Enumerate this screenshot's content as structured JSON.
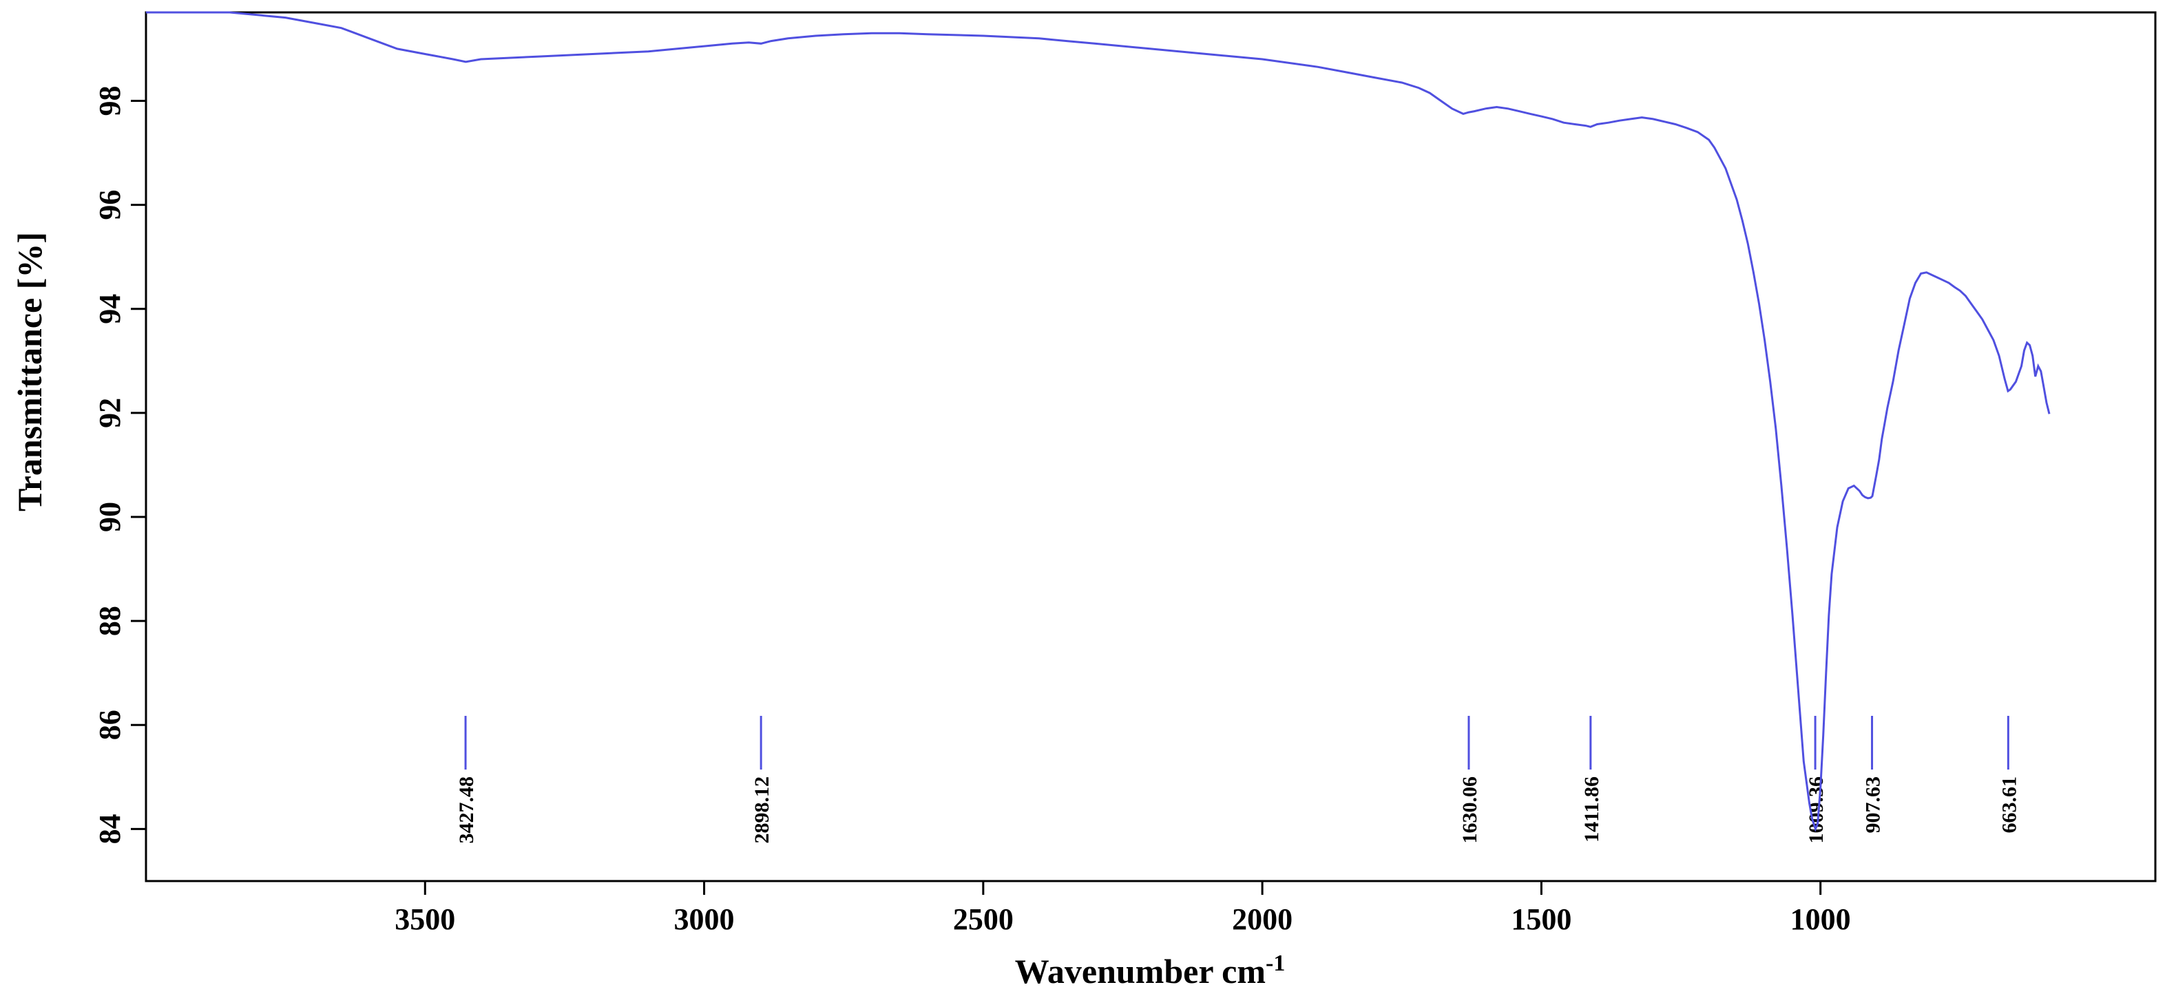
{
  "chart_data": {
    "type": "line",
    "xlabel": "Wavenumber cm",
    "xlabel_sup": "-1",
    "ylabel": "Transmittance [%]",
    "xlim": [
      4000,
      400
    ],
    "ylim": [
      83,
      99.7
    ],
    "x_ticks": [
      3500,
      3000,
      2500,
      2000,
      1500,
      1000
    ],
    "x_tick_labels": [
      "3500",
      "3000",
      "2500",
      "2000",
      "1500",
      "1000"
    ],
    "y_ticks": [
      84,
      86,
      88,
      90,
      92,
      94,
      96,
      98
    ],
    "y_tick_labels": [
      "84",
      "86",
      "88",
      "90",
      "92",
      "94",
      "96",
      "98"
    ],
    "grid": false,
    "series": [
      {
        "color": "#5050e0",
        "x": [
          4000,
          3850,
          3750,
          3700,
          3650,
          3600,
          3550,
          3500,
          3450,
          3427,
          3400,
          3300,
          3200,
          3100,
          3000,
          2950,
          2920,
          2898,
          2880,
          2850,
          2800,
          2750,
          2700,
          2650,
          2600,
          2500,
          2400,
          2350,
          2300,
          2200,
          2100,
          2000,
          1900,
          1850,
          1800,
          1750,
          1720,
          1700,
          1680,
          1660,
          1640,
          1630,
          1620,
          1600,
          1580,
          1560,
          1540,
          1520,
          1500,
          1480,
          1460,
          1440,
          1420,
          1412,
          1400,
          1380,
          1360,
          1340,
          1320,
          1300,
          1280,
          1260,
          1240,
          1220,
          1200,
          1190,
          1180,
          1170,
          1160,
          1150,
          1140,
          1130,
          1120,
          1110,
          1100,
          1090,
          1080,
          1070,
          1060,
          1050,
          1040,
          1030,
          1020,
          1015,
          1009,
          1005,
          1000,
          995,
          990,
          985,
          980,
          970,
          960,
          950,
          940,
          930,
          925,
          920,
          915,
          910,
          907,
          900,
          895,
          890,
          885,
          880,
          870,
          860,
          850,
          840,
          830,
          820,
          810,
          800,
          790,
          780,
          770,
          760,
          750,
          740,
          730,
          720,
          710,
          700,
          690,
          680,
          670,
          664,
          660,
          650,
          640,
          635,
          630,
          625,
          620,
          615,
          610,
          605,
          600,
          595,
          590
        ],
        "y": [
          99.7,
          99.7,
          99.6,
          99.5,
          99.4,
          99.2,
          99.0,
          98.9,
          98.8,
          98.75,
          98.8,
          98.85,
          98.9,
          98.95,
          99.05,
          99.1,
          99.12,
          99.1,
          99.15,
          99.2,
          99.25,
          99.28,
          99.3,
          99.3,
          99.28,
          99.25,
          99.2,
          99.15,
          99.1,
          99.0,
          98.9,
          98.8,
          98.65,
          98.55,
          98.45,
          98.35,
          98.25,
          98.15,
          98.0,
          97.85,
          97.75,
          97.78,
          97.8,
          97.85,
          97.88,
          97.85,
          97.8,
          97.75,
          97.7,
          97.65,
          97.58,
          97.55,
          97.52,
          97.5,
          97.55,
          97.58,
          97.62,
          97.65,
          97.68,
          97.65,
          97.6,
          97.55,
          97.48,
          97.4,
          97.25,
          97.1,
          96.9,
          96.7,
          96.4,
          96.1,
          95.7,
          95.25,
          94.7,
          94.1,
          93.4,
          92.6,
          91.7,
          90.6,
          89.4,
          88.1,
          86.7,
          85.3,
          84.5,
          84.2,
          84.0,
          84.1,
          84.8,
          85.8,
          87.0,
          88.1,
          88.9,
          89.8,
          90.3,
          90.55,
          90.6,
          90.5,
          90.42,
          90.38,
          90.36,
          90.37,
          90.4,
          90.8,
          91.1,
          91.5,
          91.8,
          92.1,
          92.6,
          93.2,
          93.7,
          94.2,
          94.5,
          94.68,
          94.7,
          94.65,
          94.6,
          94.55,
          94.5,
          94.42,
          94.35,
          94.25,
          94.1,
          93.95,
          93.8,
          93.6,
          93.4,
          93.1,
          92.65,
          92.42,
          92.45,
          92.6,
          92.9,
          93.2,
          93.35,
          93.3,
          93.1,
          92.7,
          92.9,
          92.8,
          92.5,
          92.2,
          91.98
        ]
      }
    ],
    "peak_markers": [
      {
        "x": 3427.48,
        "label": "3427.48"
      },
      {
        "x": 2898.12,
        "label": "2898.12"
      },
      {
        "x": 1630.06,
        "label": "1630.06"
      },
      {
        "x": 1411.86,
        "label": "1411.86"
      },
      {
        "x": 1009.36,
        "label": "1009.36"
      },
      {
        "x": 907.63,
        "label": "907.63"
      },
      {
        "x": 663.61,
        "label": "663.61"
      }
    ]
  }
}
